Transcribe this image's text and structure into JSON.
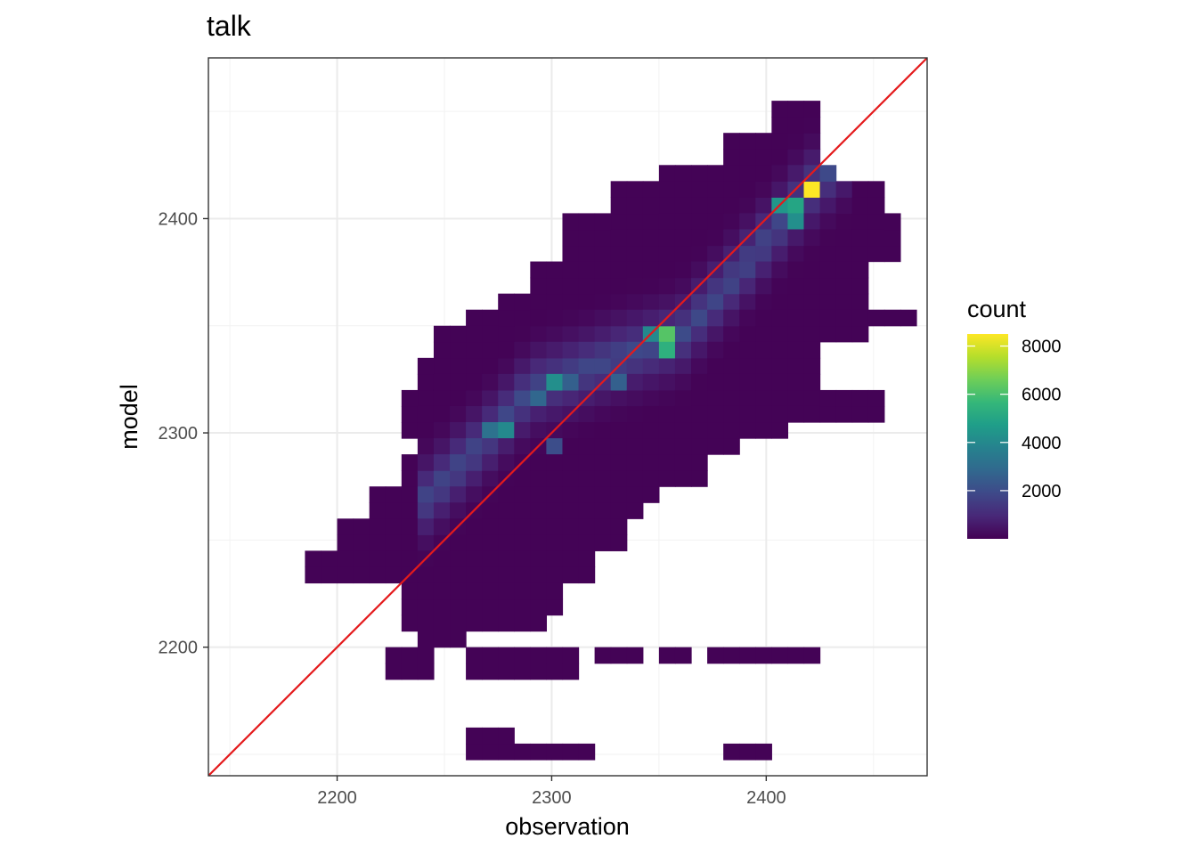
{
  "chart_data": {
    "type": "heatmap",
    "title": "talk",
    "xlabel": "observation",
    "ylabel": "model",
    "xlim": [
      2140,
      2475
    ],
    "ylim": [
      2140,
      2475
    ],
    "x_ticks": [
      2200,
      2300,
      2400
    ],
    "y_ticks": [
      2200,
      2300,
      2400
    ],
    "x_tick_labels": [
      "2200",
      "2300",
      "2400"
    ],
    "y_tick_labels": [
      "2200",
      "2300",
      "2400"
    ],
    "bin_width": 7.5,
    "grid": true,
    "reference_line": {
      "slope": 1,
      "intercept": 0,
      "color": "#e41a1c"
    },
    "legend": {
      "title": "count",
      "position": "right",
      "min": 1,
      "max": 8500,
      "breaks": [
        2000,
        4000,
        6000,
        8000
      ],
      "break_labels": [
        "2000",
        "4000",
        "6000",
        "8000"
      ],
      "palette": [
        "#440154",
        "#482878",
        "#3e4989",
        "#31688e",
        "#26828e",
        "#1f9e89",
        "#35b779",
        "#6ece58",
        "#b5de2b",
        "#fde725"
      ]
    },
    "ridge": {
      "points": [
        [
          2270,
          2298
        ],
        [
          2290,
          2320
        ],
        [
          2330,
          2335
        ],
        [
          2360,
          2345
        ],
        [
          2390,
          2378
        ],
        [
          2415,
          2408
        ]
      ],
      "halfwidth": 32,
      "x_range": [
        2240,
        2440
      ],
      "peak_cells": [
        [
          2419,
          2412,
          8500
        ],
        [
          2415,
          2403,
          5000
        ],
        [
          2409,
          2408,
          4500
        ],
        [
          2410,
          2400,
          4200
        ],
        [
          2356,
          2343,
          6200
        ],
        [
          2356,
          2335,
          5400
        ],
        [
          2349,
          2345,
          4000
        ],
        [
          2303,
          2320,
          4200
        ],
        [
          2281,
          2298,
          4000
        ],
        [
          2271,
          2298,
          3200
        ],
        [
          2330,
          2320,
          2600
        ],
        [
          2300,
          2296,
          2000
        ],
        [
          2293,
          2318,
          2800
        ],
        [
          2312,
          2320,
          2600
        ]
      ]
    },
    "blobs": [
      {
        "x": [
          2408,
          2432
        ],
        "y": [
          2425,
          2455
        ]
      },
      {
        "x": [
          2385,
          2432
        ],
        "y": [
          2425,
          2445
        ]
      },
      {
        "x": [
          2350,
          2437
        ],
        "y": [
          2405,
          2430
        ]
      },
      {
        "x": [
          2330,
          2455
        ],
        "y": [
          2395,
          2420
        ]
      },
      {
        "x": [
          2305,
          2465
        ],
        "y": [
          2380,
          2405
        ]
      },
      {
        "x": [
          2295,
          2450
        ],
        "y": [
          2360,
          2385
        ]
      },
      {
        "x": [
          2280,
          2450
        ],
        "y": [
          2345,
          2365
        ]
      },
      {
        "x": [
          2265,
          2475
        ],
        "y": [
          2350,
          2358
        ]
      },
      {
        "x": [
          2250,
          2425
        ],
        "y": [
          2333,
          2350
        ]
      },
      {
        "x": [
          2240,
          2430
        ],
        "y": [
          2318,
          2335
        ]
      },
      {
        "x": [
          2235,
          2460
        ],
        "y": [
          2310,
          2320
        ]
      },
      {
        "x": [
          2230,
          2415
        ],
        "y": [
          2300,
          2312
        ]
      },
      {
        "x": [
          2240,
          2390
        ],
        "y": [
          2290,
          2300
        ]
      },
      {
        "x": [
          2235,
          2375
        ],
        "y": [
          2280,
          2292
        ]
      },
      {
        "x": [
          2220,
          2355
        ],
        "y": [
          2268,
          2280
        ]
      },
      {
        "x": [
          2215,
          2345
        ],
        "y": [
          2260,
          2268
        ]
      },
      {
        "x": [
          2205,
          2335
        ],
        "y": [
          2248,
          2260
        ]
      },
      {
        "x": [
          2190,
          2325
        ],
        "y": [
          2238,
          2248
        ]
      },
      {
        "x": [
          2185,
          2320
        ],
        "y": [
          2230,
          2238
        ]
      },
      {
        "x": [
          2235,
          2310
        ],
        "y": [
          2218,
          2230
        ]
      },
      {
        "x": [
          2235,
          2300
        ],
        "y": [
          2210,
          2218
        ]
      },
      {
        "x": [
          2240,
          2265
        ],
        "y": [
          2200,
          2210
        ]
      },
      {
        "x": [
          2225,
          2245
        ],
        "y": [
          2190,
          2200
        ]
      },
      {
        "x": [
          2265,
          2315
        ],
        "y": [
          2190,
          2200
        ]
      },
      {
        "x": [
          2320,
          2345
        ],
        "y": [
          2193,
          2200
        ]
      },
      {
        "x": [
          2352,
          2372
        ],
        "y": [
          2193,
          2200
        ]
      },
      {
        "x": [
          2375,
          2430
        ],
        "y": [
          2193,
          2200
        ]
      },
      {
        "x": [
          2265,
          2285
        ],
        "y": [
          2153,
          2168
        ]
      },
      {
        "x": [
          2285,
          2320
        ],
        "y": [
          2153,
          2161
        ]
      },
      {
        "x": [
          2380,
          2405
        ],
        "y": [
          2153,
          2161
        ]
      }
    ]
  }
}
